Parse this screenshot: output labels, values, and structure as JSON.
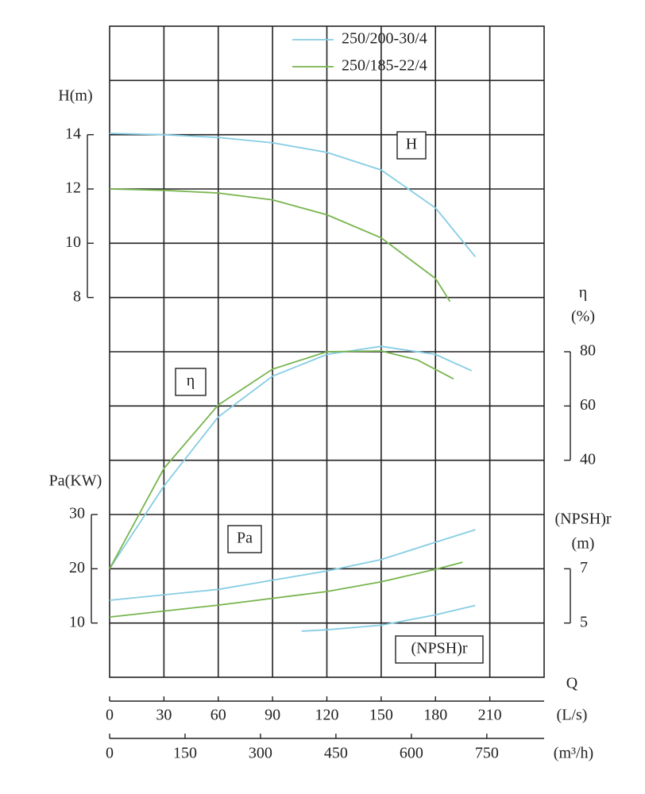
{
  "chart_data": [
    {
      "type": "line",
      "ylabel": [
        "H(m)"
      ],
      "annotation": "H",
      "ylim": [
        -6,
        18
      ],
      "yticks": [
        8,
        10,
        12,
        14
      ],
      "series": [
        {
          "name": "250/200-30/4",
          "color": "#86cde3",
          "x": [
            0,
            30,
            60,
            90,
            120,
            150,
            180,
            202
          ],
          "values": [
            14.05,
            14.0,
            13.9,
            13.7,
            13.35,
            12.7,
            11.3,
            9.5
          ]
        },
        {
          "name": "250/185-22/4",
          "color": "#78b54e",
          "x": [
            0,
            30,
            60,
            90,
            120,
            150,
            180,
            188
          ],
          "values": [
            12.0,
            11.95,
            11.85,
            11.6,
            11.05,
            10.2,
            8.7,
            7.85
          ]
        }
      ]
    },
    {
      "type": "line",
      "ylabel": [
        "η",
        "(%)"
      ],
      "annotation": "η",
      "ylim": [
        -40,
        200
      ],
      "yticks": [
        40,
        60,
        80
      ],
      "series": [
        {
          "color": "#86cde3",
          "x": [
            0,
            30,
            60,
            90,
            120,
            150,
            180,
            200
          ],
          "values": [
            0,
            30.5,
            56,
            71,
            79,
            82,
            79,
            73
          ]
        },
        {
          "color": "#78b54e",
          "x": [
            0,
            30,
            60,
            90,
            120,
            150,
            170,
            190
          ],
          "values": [
            0,
            37,
            60.4,
            73.6,
            80,
            80.3,
            77,
            70
          ]
        }
      ]
    },
    {
      "type": "line",
      "ylabel": [
        "Pa(KW)"
      ],
      "annotation": "Pa",
      "ylim": [
        0,
        120
      ],
      "yticks": [
        10,
        20,
        30
      ],
      "series": [
        {
          "color": "#86cde3",
          "x": [
            0,
            60,
            120,
            150,
            180,
            202
          ],
          "values": [
            14.2,
            16.2,
            19.6,
            21.7,
            24.9,
            27.2
          ]
        },
        {
          "color": "#78b54e",
          "x": [
            0,
            60,
            120,
            150,
            180,
            195
          ],
          "values": [
            11.1,
            13.3,
            15.8,
            17.6,
            19.9,
            21.2
          ]
        }
      ]
    },
    {
      "type": "line",
      "ylabel": [
        "(NPSH)r",
        "(m)"
      ],
      "annotation": "(NPSH)r",
      "ylim": [
        3,
        27
      ],
      "yticks": [
        5,
        7
      ],
      "series": [
        {
          "color": "#86cde3",
          "x": [
            106,
            120,
            150,
            180,
            202
          ],
          "values": [
            4.7,
            4.75,
            4.92,
            5.3,
            5.65
          ]
        }
      ]
    }
  ],
  "q_axis": {
    "label": "Q",
    "unit": "(L/s)",
    "xlim": [
      0,
      240
    ],
    "xticks": [
      0,
      30,
      60,
      90,
      120,
      150,
      180,
      210
    ],
    "secondary": {
      "unit": "(m³/h)",
      "xlim": [
        0,
        864
      ],
      "xticks": [
        0,
        150,
        300,
        450,
        600,
        750
      ]
    }
  }
}
